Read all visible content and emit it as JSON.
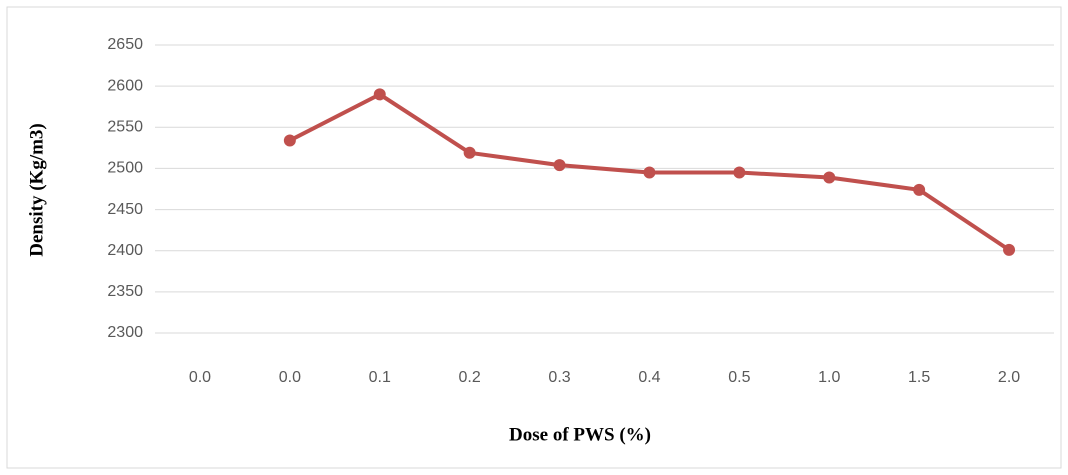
{
  "chart_data": {
    "type": "line",
    "x_label": "Dose of PWS (%)",
    "y_label": "Density (Kg/m3)",
    "categories": [
      "0.0",
      "0.0",
      "0.1",
      "0.2",
      "0.3",
      "0.4",
      "0.5",
      "1.0",
      "1.5",
      "2.0"
    ],
    "series": [
      {
        "name": "Density",
        "color": "#c0504d",
        "values": [
          null,
          2534,
          2590,
          2519,
          2504,
          2495,
          2495,
          2489,
          2474,
          2401
        ]
      }
    ],
    "ylim": [
      2300,
      2650
    ],
    "yticks": [
      2300,
      2350,
      2400,
      2450,
      2500,
      2550,
      2600,
      2650
    ],
    "grid": true
  }
}
